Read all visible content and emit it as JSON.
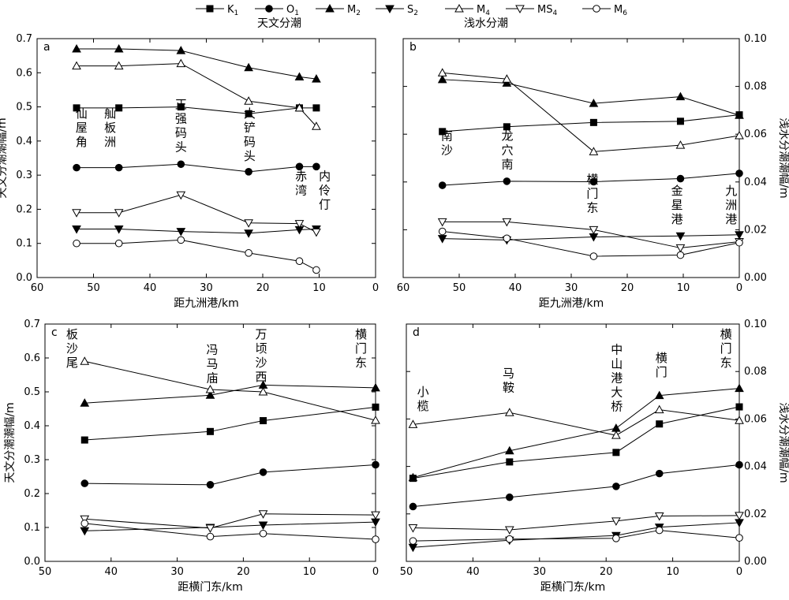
{
  "legend": {
    "items": [
      {
        "name": "K1",
        "marker": "square-filled"
      },
      {
        "name": "O1",
        "marker": "circle-filled"
      },
      {
        "name": "M2",
        "marker": "triangle-up-filled"
      },
      {
        "name": "S2",
        "marker": "triangle-down-filled"
      },
      {
        "name": "M4",
        "marker": "triangle-up-open"
      },
      {
        "name": "MS4",
        "marker": "triangle-down-open"
      },
      {
        "name": "M6",
        "marker": "circle-open"
      }
    ],
    "group_astronomical": "天文分潮",
    "group_shallow": "浅水分潮"
  },
  "chart_data": [
    {
      "type": "line",
      "panel": "a",
      "xlabel": "距九洲港/km",
      "ylabel": "天文分潮潮幅/m",
      "xlim": [
        60,
        0
      ],
      "ylim": [
        0,
        0.7
      ],
      "xticks": [
        60,
        50,
        40,
        30,
        20,
        10,
        0
      ],
      "yticks": [
        0.0,
        0.1,
        0.2,
        0.3,
        0.4,
        0.5,
        0.6,
        0.7
      ],
      "x": [
        53,
        45.5,
        34.5,
        22.5,
        13.5,
        10.5
      ],
      "series": [
        {
          "name": "K1",
          "values": [
            0.497,
            0.497,
            0.5,
            0.48,
            0.497,
            0.497
          ]
        },
        {
          "name": "O1",
          "values": [
            0.322,
            0.322,
            0.332,
            0.31,
            0.325,
            0.325
          ]
        },
        {
          "name": "M2",
          "values": [
            0.67,
            0.67,
            0.665,
            0.615,
            0.588,
            0.582
          ]
        },
        {
          "name": "S2",
          "values": [
            0.142,
            0.142,
            0.135,
            0.13,
            0.14,
            0.142
          ]
        },
        {
          "name": "M4",
          "values": [
            0.62,
            0.62,
            0.627,
            0.517,
            0.497,
            0.443
          ]
        },
        {
          "name": "MS4",
          "values": [
            0.19,
            0.19,
            0.242,
            0.16,
            0.158,
            0.133
          ]
        },
        {
          "name": "M6",
          "values": [
            0.1,
            0.1,
            0.11,
            0.072,
            0.048,
            0.022
          ]
        }
      ],
      "annotations": [
        "仙屋角",
        "舢板洲",
        "正强码头",
        "大铲码头",
        "赤湾",
        "内伶仃"
      ]
    },
    {
      "type": "line",
      "panel": "b",
      "xlabel": "距九洲港/km",
      "ylabel": "浅水分潮潮幅/m",
      "xlim": [
        60,
        0
      ],
      "ylim": [
        0,
        0.1
      ],
      "xticks": [
        60,
        50,
        40,
        30,
        20,
        10,
        0
      ],
      "yticks": [
        0.0,
        0.02,
        0.04,
        0.06,
        0.08,
        0.1
      ],
      "x": [
        53,
        41.5,
        26,
        10.5,
        0
      ],
      "series": [
        {
          "name": "K1",
          "values": [
            0.0611,
            0.0631,
            0.0649,
            0.0654,
            0.0681
          ]
        },
        {
          "name": "O1",
          "values": [
            0.0386,
            0.0403,
            0.0401,
            0.0414,
            0.0436
          ]
        },
        {
          "name": "M2",
          "values": [
            0.0829,
            0.0814,
            0.0729,
            0.0757,
            0.0679
          ]
        },
        {
          "name": "S2",
          "values": [
            0.0163,
            0.0157,
            0.017,
            0.0174,
            0.0179
          ]
        },
        {
          "name": "M4",
          "values": [
            0.0857,
            0.0831,
            0.0527,
            0.0554,
            0.0594
          ]
        },
        {
          "name": "MS4",
          "values": [
            0.0233,
            0.0233,
            0.02,
            0.0124,
            0.015
          ]
        },
        {
          "name": "M6",
          "values": [
            0.0193,
            0.0164,
            0.0089,
            0.0094,
            0.0146
          ]
        }
      ],
      "annotations": [
        "南沙",
        "龙穴南",
        "横门东",
        "金星港",
        "九洲港"
      ]
    },
    {
      "type": "line",
      "panel": "c",
      "xlabel": "距横门东/km",
      "ylabel": "天文分潮潮幅/m",
      "xlim": [
        50,
        0
      ],
      "ylim": [
        0,
        0.7
      ],
      "xticks": [
        50,
        40,
        30,
        20,
        10,
        0
      ],
      "yticks": [
        0.0,
        0.1,
        0.2,
        0.3,
        0.4,
        0.5,
        0.6,
        0.7
      ],
      "x": [
        44,
        25,
        17,
        0
      ],
      "series": [
        {
          "name": "K1",
          "values": [
            0.358,
            0.383,
            0.415,
            0.455
          ]
        },
        {
          "name": "O1",
          "values": [
            0.23,
            0.226,
            0.263,
            0.285
          ]
        },
        {
          "name": "M2",
          "values": [
            0.467,
            0.49,
            0.52,
            0.512
          ]
        },
        {
          "name": "S2",
          "values": [
            0.09,
            0.1,
            0.107,
            0.116
          ]
        },
        {
          "name": "M4",
          "values": [
            0.59,
            0.507,
            0.5,
            0.416
          ]
        },
        {
          "name": "MS4",
          "values": [
            0.125,
            0.098,
            0.14,
            0.137
          ]
        },
        {
          "name": "M6",
          "values": [
            0.112,
            0.073,
            0.082,
            0.065
          ]
        }
      ],
      "annotations": [
        "板沙尾",
        "冯马庙",
        "万顷沙西",
        "横门东"
      ]
    },
    {
      "type": "line",
      "panel": "d",
      "xlabel": "距横门东/km",
      "ylabel": "浅水分潮潮幅/m",
      "xlim": [
        50,
        0
      ],
      "ylim": [
        0,
        0.1
      ],
      "xticks": [
        50,
        40,
        30,
        20,
        10,
        0
      ],
      "yticks": [
        0.0,
        0.02,
        0.04,
        0.06,
        0.08,
        0.1
      ],
      "x": [
        49,
        34.5,
        18.5,
        12,
        0
      ],
      "series": [
        {
          "name": "K1",
          "values": [
            0.035,
            0.0419,
            0.0459,
            0.0579,
            0.0651
          ]
        },
        {
          "name": "O1",
          "values": [
            0.0231,
            0.027,
            0.0316,
            0.037,
            0.0407
          ]
        },
        {
          "name": "M2",
          "values": [
            0.0353,
            0.0466,
            0.0561,
            0.0699,
            0.0729
          ]
        },
        {
          "name": "S2",
          "values": [
            0.0059,
            0.0089,
            0.0109,
            0.0144,
            0.0163
          ]
        },
        {
          "name": "M4",
          "values": [
            0.0577,
            0.0627,
            0.0531,
            0.0639,
            0.0594
          ]
        },
        {
          "name": "MS4",
          "values": [
            0.0141,
            0.0133,
            0.017,
            0.0191,
            0.0193
          ]
        },
        {
          "name": "M6",
          "values": [
            0.0086,
            0.0094,
            0.0097,
            0.0131,
            0.0099
          ]
        }
      ],
      "annotations": [
        "小榄",
        "马鞍",
        "中山港大桥",
        "横门",
        "横门东"
      ]
    }
  ]
}
